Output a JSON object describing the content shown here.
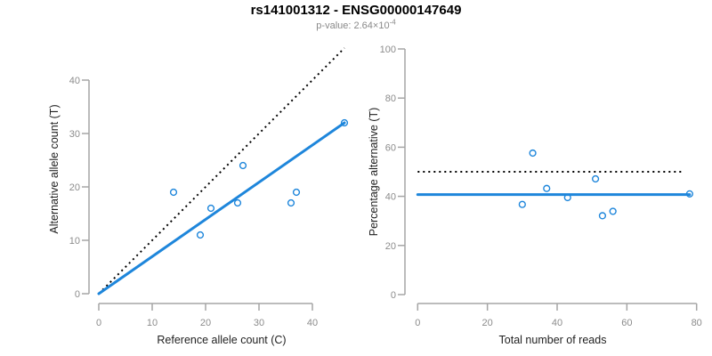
{
  "header": {
    "title": "rs141001312 - ENSG00000147649",
    "subtitle_text": "p-value: 2.64×10",
    "subtitle_exponent": "-4"
  },
  "colors": {
    "accent_blue": "#1E86DB",
    "dotted_line_black": "#000000",
    "axis_line_gray": "#A5A5A5",
    "tick_label_gray": "#8C8C8C",
    "axis_title_dark": "#1F1F1F",
    "subtitle_gray": "#8A8A8A",
    "background": "#FFFFFF"
  },
  "chart_data": [
    {
      "type": "scatter",
      "panel": "left",
      "xlabel": "Reference allele count (C)",
      "ylabel": "Alternative allele count (T)",
      "xlim": [
        0,
        46.5
      ],
      "ylim": [
        0,
        46
      ],
      "xticks": [
        0,
        10,
        20,
        30,
        40
      ],
      "yticks": [
        0,
        10,
        20,
        30,
        40
      ],
      "grid": false,
      "legend": "none",
      "point_color": "#1E86DB",
      "points": [
        [
          14,
          19
        ],
        [
          19,
          11
        ],
        [
          21,
          16
        ],
        [
          26,
          17
        ],
        [
          27,
          24
        ],
        [
          36,
          17
        ],
        [
          37,
          19
        ],
        [
          46,
          32
        ]
      ],
      "lines": [
        {
          "name": "identity-line",
          "style": "dotted",
          "color": "#000000",
          "x": [
            0,
            46
          ],
          "y": [
            0,
            46
          ]
        },
        {
          "name": "fit-line",
          "style": "solid",
          "color": "#1E86DB",
          "x": [
            0,
            46
          ],
          "y": [
            0,
            32
          ]
        }
      ]
    },
    {
      "type": "scatter",
      "panel": "right",
      "xlabel": "Total number of reads",
      "ylabel": "Percentage alternative (T)",
      "xlim": [
        0,
        80
      ],
      "ylim": [
        0,
        100
      ],
      "xticks": [
        0,
        20,
        40,
        60,
        80
      ],
      "yticks": [
        0,
        20,
        40,
        60,
        80,
        100
      ],
      "grid": false,
      "legend": "none",
      "point_color": "#1E86DB",
      "points": [
        [
          30,
          36.7
        ],
        [
          33,
          57.6
        ],
        [
          37,
          43.2
        ],
        [
          43,
          39.5
        ],
        [
          51,
          47.1
        ],
        [
          53,
          32.1
        ],
        [
          56,
          33.9
        ],
        [
          78,
          41
        ]
      ],
      "lines": [
        {
          "name": "expected-50pct-line",
          "style": "dotted",
          "color": "#000000",
          "x": [
            0,
            76
          ],
          "y": [
            50,
            50
          ]
        },
        {
          "name": "observed-pct-line",
          "style": "solid",
          "color": "#1E86DB",
          "x": [
            0,
            78
          ],
          "y": [
            40.7,
            40.7
          ]
        }
      ]
    }
  ]
}
